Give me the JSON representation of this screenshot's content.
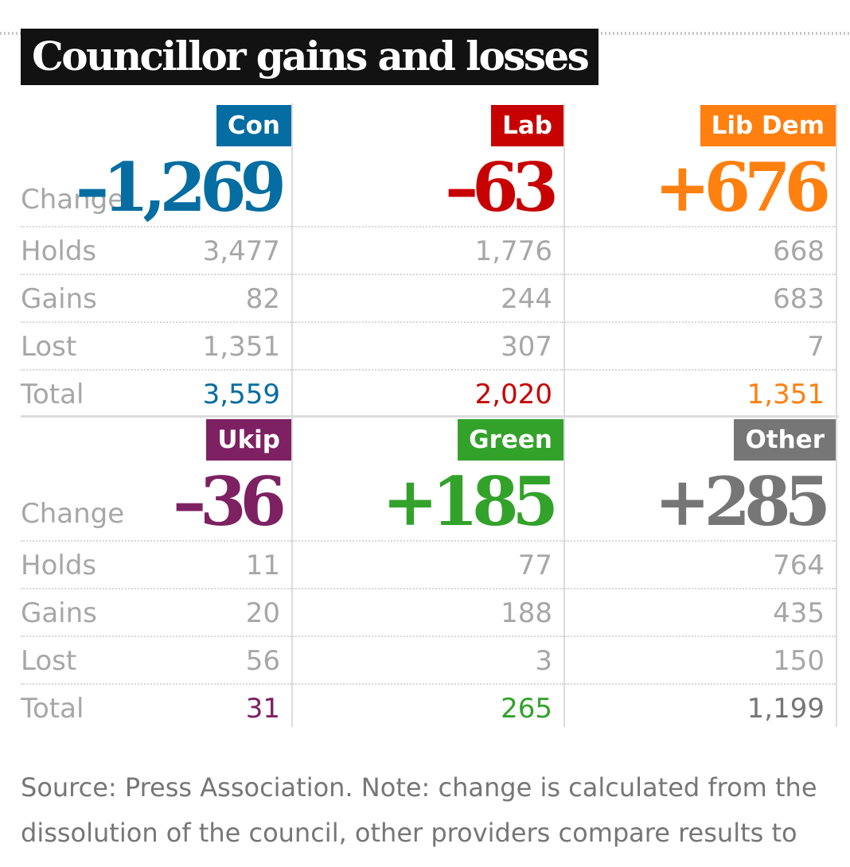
{
  "title": "Councillor gains and losses",
  "row_labels": [
    "Change",
    "Holds",
    "Gains",
    "Lost",
    "Total"
  ],
  "chart_data": {
    "type": "table",
    "title": "Councillor gains and losses",
    "columns": [
      "Change",
      "Holds",
      "Gains",
      "Lost",
      "Total"
    ],
    "parties": [
      {
        "name": "Con",
        "color": "#056da1",
        "change": "-1,269",
        "holds": "3,477",
        "gains": "82",
        "lost": "1,351",
        "total": "3,559"
      },
      {
        "name": "Lab",
        "color": "#c70000",
        "change": "-63",
        "holds": "1,776",
        "gains": "244",
        "lost": "307",
        "total": "2,020"
      },
      {
        "name": "Lib Dem",
        "color": "#ff7f0f",
        "change": "+676",
        "holds": "668",
        "gains": "683",
        "lost": "7",
        "total": "1,351"
      },
      {
        "name": "Ukip",
        "color": "#7d2162",
        "change": "-36",
        "holds": "11",
        "gains": "20",
        "lost": "56",
        "total": "31"
      },
      {
        "name": "Green",
        "color": "#33a22b",
        "change": "+185",
        "holds": "77",
        "gains": "188",
        "lost": "3",
        "total": "265"
      },
      {
        "name": "Other",
        "color": "#767676",
        "change": "+285",
        "holds": "764",
        "gains": "435",
        "lost": "150",
        "total": "1,199"
      }
    ]
  },
  "footnote": "Source: Press Association. Note: change is calculated from the dissolution of the council, other providers compare results to"
}
